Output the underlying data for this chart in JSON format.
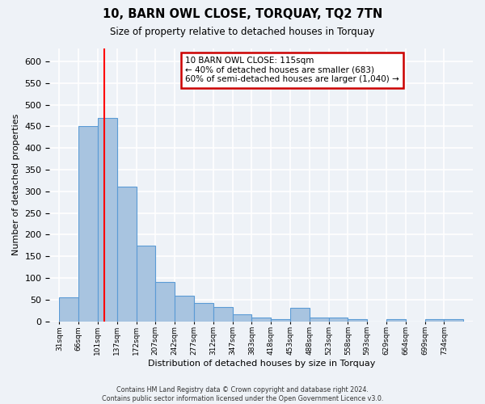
{
  "title": "10, BARN OWL CLOSE, TORQUAY, TQ2 7TN",
  "subtitle": "Size of property relative to detached houses in Torquay",
  "xlabel": "Distribution of detached houses by size in Torquay",
  "ylabel": "Number of detached properties",
  "bin_labels": [
    "31sqm",
    "66sqm",
    "101sqm",
    "137sqm",
    "172sqm",
    "207sqm",
    "242sqm",
    "277sqm",
    "312sqm",
    "347sqm",
    "383sqm",
    "418sqm",
    "453sqm",
    "488sqm",
    "523sqm",
    "558sqm",
    "593sqm",
    "629sqm",
    "664sqm",
    "699sqm",
    "734sqm"
  ],
  "bar_values": [
    55,
    450,
    470,
    310,
    175,
    90,
    58,
    42,
    32,
    15,
    8,
    5,
    30,
    8,
    8,
    5,
    0,
    5,
    0,
    5,
    5
  ],
  "bar_color": "#a8c4e0",
  "bar_edge_color": "#5b9bd5",
  "red_line_x": 2.35,
  "red_line_label": "10 BARN OWL CLOSE: 115sqm",
  "annotation_line2": "← 40% of detached houses are smaller (683)",
  "annotation_line3": "60% of semi-detached houses are larger (1,040) →",
  "annotation_box_color": "#ffffff",
  "annotation_box_edge": "#cc0000",
  "ylim": [
    0,
    630
  ],
  "yticks": [
    0,
    50,
    100,
    150,
    200,
    250,
    300,
    350,
    400,
    450,
    500,
    550,
    600
  ],
  "footer_line1": "Contains HM Land Registry data © Crown copyright and database right 2024.",
  "footer_line2": "Contains public sector information licensed under the Open Government Licence v3.0.",
  "bg_color": "#eef2f7",
  "grid_color": "#ffffff"
}
